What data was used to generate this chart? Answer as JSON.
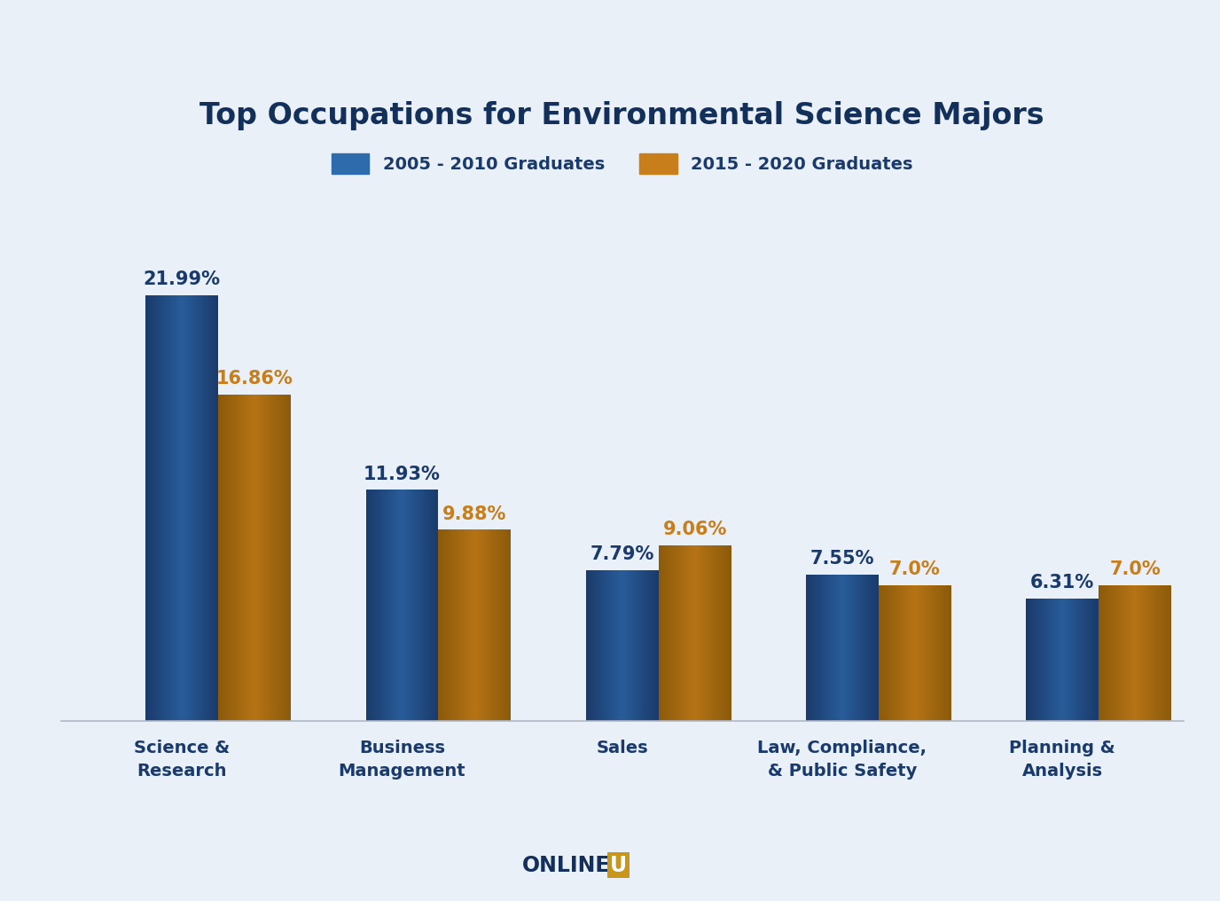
{
  "title": "Top Occupations for Environmental Science Majors",
  "categories": [
    "Science &\nResearch",
    "Business\nManagement",
    "Sales",
    "Law, Compliance,\n& Public Safety",
    "Planning &\nAnalysis"
  ],
  "series": [
    {
      "label": "2005 - 2010 Graduates",
      "values": [
        21.99,
        11.93,
        7.79,
        7.55,
        6.31
      ],
      "color_dark": "#1a3a6b",
      "color_mid": "#2e6bad",
      "color_light": "#3a7fc1"
    },
    {
      "label": "2015 - 2020 Graduates",
      "values": [
        16.86,
        9.88,
        9.06,
        7.0,
        7.0
      ],
      "color_dark": "#8b5a0a",
      "color_mid": "#c87e1a",
      "color_light": "#d4901f"
    }
  ],
  "label_colors": [
    "#1a3a6b",
    "#c87e1a"
  ],
  "background_color": "#eaf0f7",
  "title_color": "#12305a",
  "tick_label_color": "#1a3a6b",
  "annotation_fontsize": 15,
  "title_fontsize": 24,
  "legend_fontsize": 14,
  "tick_fontsize": 14,
  "ylim": [
    0,
    27
  ],
  "bar_width": 0.33,
  "onlineu_color": "#12305a",
  "onlineu_box_color": "#c8961a"
}
